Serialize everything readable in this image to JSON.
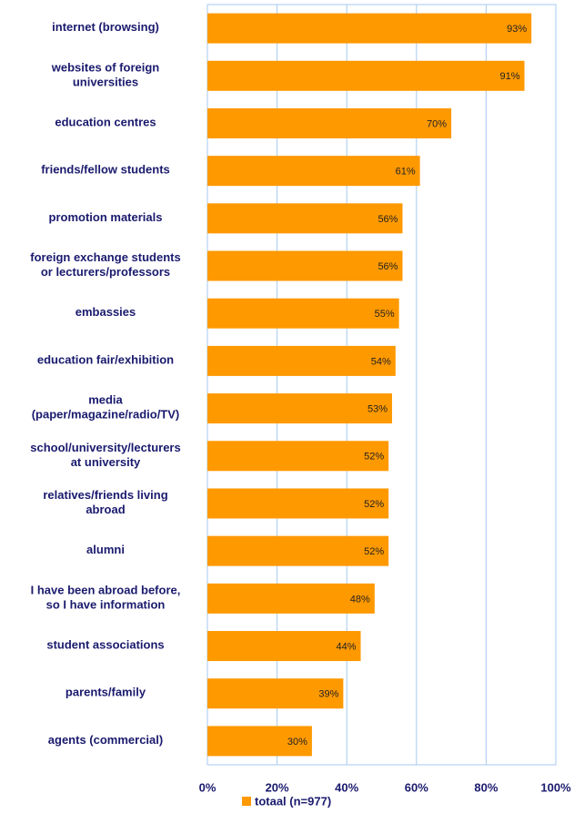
{
  "chart_data": {
    "type": "barh",
    "categories": [
      "internet (browsing)",
      "websites of foreign\nuniversities",
      "education centres",
      "friends/fellow students",
      "promotion materials",
      "foreign exchange students\nor lecturers/professors",
      "embassies",
      "education fair/exhibition",
      "media\n(paper/magazine/radio/TV)",
      "school/university/lecturers\nat university",
      "relatives/friends living\nabroad",
      "alumni",
      "I have been abroad before,\nso I have information",
      "student associations",
      "parents/family",
      "agents (commercial)"
    ],
    "series": [
      {
        "name": "totaal (n=977)",
        "color": "#ff9900",
        "values": [
          93,
          91,
          70,
          61,
          56,
          56,
          55,
          54,
          53,
          52,
          52,
          52,
          48,
          44,
          39,
          30
        ],
        "value_labels": [
          "93%",
          "91%",
          "70%",
          "61%",
          "56%",
          "56%",
          "55%",
          "54%",
          "53%",
          "52%",
          "52%",
          "52%",
          "48%",
          "44%",
          "39%",
          "30%"
        ]
      }
    ],
    "xlim": [
      0,
      100
    ],
    "xticks": [
      {
        "value": 0,
        "label": "0%"
      },
      {
        "value": 20,
        "label": "20%"
      },
      {
        "value": 40,
        "label": "40%"
      },
      {
        "value": 60,
        "label": "60%"
      },
      {
        "value": 80,
        "label": "80%"
      },
      {
        "value": 100,
        "label": "100%"
      }
    ],
    "grid": true,
    "legend": "bottom"
  }
}
